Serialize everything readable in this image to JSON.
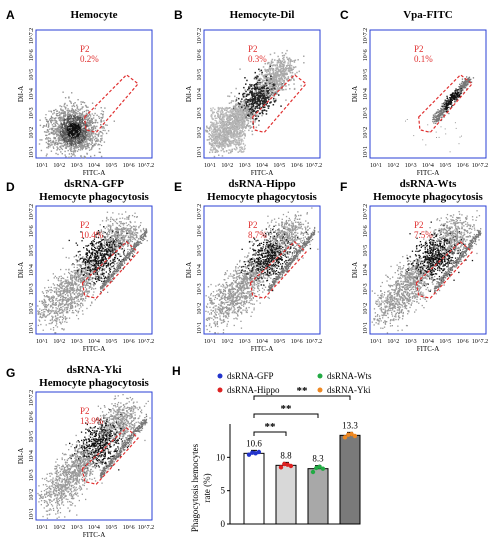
{
  "chart_data": [
    {
      "type": "scatter",
      "panel": "A",
      "title": "Hemocyte",
      "subtitle": "",
      "xlabel": "FITC-A",
      "ylabel": "Dil-A",
      "gate": {
        "name": "P2",
        "value": "0.2%"
      },
      "x_ticks": [
        "10^1",
        "10^2",
        "10^3",
        "10^4",
        "10^5",
        "10^6",
        "10^7.2"
      ],
      "y_ticks": [
        "10^1",
        "10^2",
        "10^3",
        "10^4",
        "10^5",
        "10^6",
        "10^7.2"
      ],
      "pattern": "blob"
    },
    {
      "type": "scatter",
      "panel": "B",
      "title": "Hemocyte-Dil",
      "subtitle": "",
      "xlabel": "FITC-A",
      "ylabel": "Dil-A",
      "gate": {
        "name": "P2",
        "value": "0.3%"
      },
      "x_ticks": [
        "10^1",
        "10^2",
        "10^3",
        "10^4",
        "10^5",
        "10^6",
        "10^7.2"
      ],
      "y_ticks": [
        "10^1",
        "10^2",
        "10^3",
        "10^4",
        "10^5",
        "10^6",
        "10^7.2"
      ],
      "pattern": "diagonal-wide"
    },
    {
      "type": "scatter",
      "panel": "C",
      "title": "Vpa-FITC",
      "subtitle": "",
      "xlabel": "FITC-A",
      "ylabel": "Dil-A",
      "gate": {
        "name": "P2",
        "value": "0.1%"
      },
      "x_ticks": [
        "10^1",
        "10^2",
        "10^3",
        "10^4",
        "10^5",
        "10^6",
        "10^7.2"
      ],
      "y_ticks": [
        "10^1",
        "10^2",
        "10^3",
        "10^4",
        "10^5",
        "10^6",
        "10^7.2"
      ],
      "pattern": "narrow-line"
    },
    {
      "type": "scatter",
      "panel": "D",
      "title": "dsRNA-GFP",
      "subtitle": "Hemocyte phagocytosis",
      "xlabel": "FITC-A",
      "ylabel": "Dil-A",
      "gate": {
        "name": "P2",
        "value": "10.4%"
      },
      "x_ticks": [
        "10^1",
        "10^2",
        "10^3",
        "10^4",
        "10^5",
        "10^6",
        "10^7.2"
      ],
      "y_ticks": [
        "10^1",
        "10^2",
        "10^3",
        "10^4",
        "10^5",
        "10^6",
        "10^7.2"
      ],
      "pattern": "phago"
    },
    {
      "type": "scatter",
      "panel": "E",
      "title": "dsRNA-Hippo",
      "subtitle": "Hemocyte phagocytosis",
      "xlabel": "FITC-A",
      "ylabel": "Dil-A",
      "gate": {
        "name": "P2",
        "value": "8.7%"
      },
      "x_ticks": [
        "10^1",
        "10^2",
        "10^3",
        "10^4",
        "10^5",
        "10^6",
        "10^7.2"
      ],
      "y_ticks": [
        "10^1",
        "10^2",
        "10^3",
        "10^4",
        "10^5",
        "10^6",
        "10^7.2"
      ],
      "pattern": "phago"
    },
    {
      "type": "scatter",
      "panel": "F",
      "title": "dsRNA-Wts",
      "subtitle": "Hemocyte phagocytosis",
      "xlabel": "FITC-A",
      "ylabel": "Dil-A",
      "gate": {
        "name": "P2",
        "value": "7.5%"
      },
      "x_ticks": [
        "10^1",
        "10^2",
        "10^3",
        "10^4",
        "10^5",
        "10^6",
        "10^7.2"
      ],
      "y_ticks": [
        "10^1",
        "10^2",
        "10^3",
        "10^4",
        "10^5",
        "10^6",
        "10^7.2"
      ],
      "pattern": "phago"
    },
    {
      "type": "scatter",
      "panel": "G",
      "title": "dsRNA-Yki",
      "subtitle": "Hemocyte phagocytosis",
      "xlabel": "FITC-A",
      "ylabel": "Dil-A",
      "gate": {
        "name": "P2",
        "value": "13.9%"
      },
      "x_ticks": [
        "10^1",
        "10^2",
        "10^3",
        "10^4",
        "10^5",
        "10^6",
        "10^7.2"
      ],
      "y_ticks": [
        "10^1",
        "10^2",
        "10^3",
        "10^4",
        "10^5",
        "10^6",
        "10^7.2"
      ],
      "pattern": "phago"
    },
    {
      "type": "bar",
      "panel": "H",
      "title": "",
      "categories": [
        "dsRNA-GFP",
        "dsRNA-Hippo",
        "dsRNA-Wts",
        "dsRNA-Yki"
      ],
      "values": [
        10.6,
        8.8,
        8.3,
        13.3
      ],
      "value_labels": [
        "10.6",
        "8.8",
        "8.3",
        "13.3"
      ],
      "ylabel_line1": "Phagocytosis hemocytes",
      "ylabel_line2": "rate (%)",
      "ylim": [
        0,
        15
      ],
      "y_ticks": [
        0,
        5,
        10
      ],
      "bar_colors": [
        "#ffffff",
        "#d8d8d8",
        "#a8a8a8",
        "#7a7a7a"
      ],
      "point_colors": [
        "#2233cc",
        "#dd2222",
        "#22aa44",
        "#ee8822"
      ],
      "points": [
        [
          10.4,
          10.7,
          10.6,
          10.8
        ],
        [
          8.5,
          9.0,
          8.9,
          8.7
        ],
        [
          7.8,
          8.4,
          8.6,
          8.3
        ],
        [
          13.0,
          13.4,
          13.5,
          13.2
        ]
      ],
      "legend": [
        "dsRNA-GFP",
        "dsRNA-Wts",
        "dsRNA-Hippo",
        "dsRNA-Yki"
      ],
      "legend_colors": [
        "#2233cc",
        "#22aa44",
        "#dd2222",
        "#ee8822"
      ],
      "significance": [
        {
          "from": 0,
          "to": 1,
          "label": "**"
        },
        {
          "from": 0,
          "to": 2,
          "label": "**"
        },
        {
          "from": 0,
          "to": 3,
          "label": "**"
        }
      ]
    }
  ]
}
